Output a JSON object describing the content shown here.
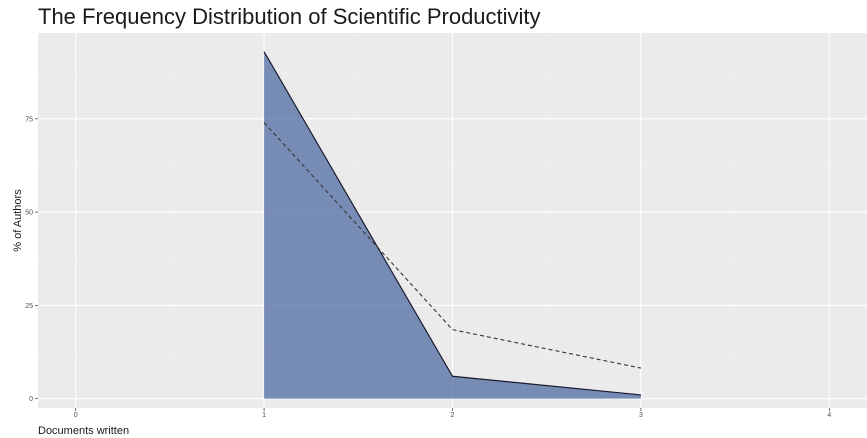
{
  "chart_data": {
    "type": "area",
    "title": "The Frequency Distribution of Scientific Productivity",
    "xlabel": "Documents written",
    "ylabel": "% of Authors",
    "xlim": [
      -0.2,
      4.2
    ],
    "ylim": [
      -2.5,
      98
    ],
    "x_ticks": [
      0,
      1,
      2,
      3,
      4
    ],
    "y_ticks": [
      0,
      25,
      50,
      75
    ],
    "grid": true,
    "legend": "none",
    "series": [
      {
        "style": "area-solid",
        "x": [
          1,
          2,
          3
        ],
        "y": [
          93.0,
          6.0,
          1.0
        ],
        "fill_color": "#4a66a0",
        "line_color": "#1a1a2e"
      },
      {
        "style": "line-dashed",
        "x": [
          1,
          2,
          3
        ],
        "y": [
          74.0,
          18.5,
          8.2
        ],
        "line_color": "#333333"
      }
    ],
    "colors": {
      "panel_background": "#ebebeb",
      "grid_major": "#ffffff",
      "grid_minor": "#f3f3f3"
    }
  }
}
